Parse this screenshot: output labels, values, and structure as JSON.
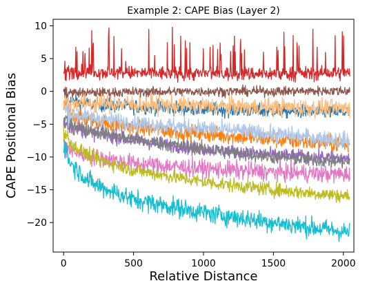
{
  "chart_data": {
    "type": "line",
    "title": "Example 2: CAPE Bias (Layer 2)",
    "xlabel": "Relative Distance",
    "ylabel": "CAPE Positional Bias",
    "xlim": [
      -75,
      2075
    ],
    "ylim": [
      -24.5,
      11
    ],
    "xticks": [
      0,
      500,
      1000,
      1500,
      2000
    ],
    "xtick_labels": [
      "0",
      "500",
      "1000",
      "1500",
      "2000"
    ],
    "yticks": [
      10,
      5,
      0,
      -5,
      -10,
      -15,
      -20
    ],
    "ytick_labels": [
      "10",
      "5",
      "0",
      "−5",
      "−10",
      "−15",
      "−20"
    ],
    "grid": false,
    "legend": "none",
    "x_range": [
      0,
      2047
    ],
    "series": [
      {
        "color": "#1f77b4",
        "noise": 1.0,
        "points": [
          [
            0,
            -0.5
          ],
          [
            50,
            -1.5
          ],
          [
            200,
            -2.0
          ],
          [
            500,
            -2.3
          ],
          [
            1000,
            -2.7
          ],
          [
            1500,
            -3.0
          ],
          [
            2047,
            -3.2
          ]
        ]
      },
      {
        "color": "#ff7f0e",
        "noise": 1.2,
        "points": [
          [
            0,
            -2.0
          ],
          [
            50,
            -3.5
          ],
          [
            200,
            -4.5
          ],
          [
            500,
            -5.5
          ],
          [
            1000,
            -6.5
          ],
          [
            1500,
            -7.3
          ],
          [
            2047,
            -8.2
          ]
        ]
      },
      {
        "color": "#9467bd",
        "noise": 1.0,
        "points": [
          [
            0,
            -4.5
          ],
          [
            50,
            -5.5
          ],
          [
            200,
            -6.3
          ],
          [
            500,
            -7.5
          ],
          [
            1000,
            -8.8
          ],
          [
            1500,
            -9.7
          ],
          [
            2047,
            -10.3
          ]
        ]
      },
      {
        "color": "#7f7f7f",
        "noise": 1.0,
        "points": [
          [
            0,
            -4.0
          ],
          [
            50,
            -5.0
          ],
          [
            200,
            -6.0
          ],
          [
            500,
            -7.3
          ],
          [
            1000,
            -8.8
          ],
          [
            1500,
            -10.0
          ],
          [
            2047,
            -10.8
          ]
        ]
      },
      {
        "color": "#e377c2",
        "noise": 1.3,
        "points": [
          [
            0,
            -8.0
          ],
          [
            50,
            -9.0
          ],
          [
            200,
            -10.0
          ],
          [
            500,
            -11.0
          ],
          [
            1000,
            -11.8
          ],
          [
            1500,
            -12.3
          ],
          [
            2047,
            -12.7
          ]
        ]
      },
      {
        "color": "#bcbd22",
        "noise": 1.0,
        "points": [
          [
            0,
            -6.0
          ],
          [
            50,
            -8.0
          ],
          [
            200,
            -10.0
          ],
          [
            500,
            -12.0
          ],
          [
            1000,
            -13.8
          ],
          [
            1500,
            -15.0
          ],
          [
            2047,
            -16.0
          ]
        ]
      },
      {
        "color": "#aec7e8",
        "noise": 1.2,
        "points": [
          [
            0,
            -2.5
          ],
          [
            50,
            -3.5
          ],
          [
            200,
            -4.0
          ],
          [
            500,
            -4.8
          ],
          [
            1000,
            -5.6
          ],
          [
            1500,
            -6.5
          ],
          [
            2047,
            -7.5
          ]
        ]
      },
      {
        "color": "#8c564b",
        "noise": 0.7,
        "points": [
          [
            0,
            0.0
          ],
          [
            50,
            -0.2
          ],
          [
            200,
            -0.2
          ],
          [
            500,
            -0.1
          ],
          [
            1000,
            0.0
          ],
          [
            1500,
            0.0
          ],
          [
            2047,
            0.1
          ]
        ]
      },
      {
        "color": "#ffbb78",
        "noise": 1.3,
        "points": [
          [
            0,
            -1.5
          ],
          [
            50,
            -1.7
          ],
          [
            200,
            -1.8
          ],
          [
            500,
            -2.0
          ],
          [
            1000,
            -2.2
          ],
          [
            1500,
            -2.4
          ],
          [
            2047,
            -2.6
          ]
        ]
      },
      {
        "color": "#17becf",
        "noise": 1.4,
        "points": [
          [
            0,
            -8.0
          ],
          [
            50,
            -11.0
          ],
          [
            200,
            -14.0
          ],
          [
            500,
            -16.5
          ],
          [
            1000,
            -18.5
          ],
          [
            1500,
            -20.0
          ],
          [
            2047,
            -21.5
          ]
        ]
      },
      {
        "color": "#d62728",
        "noise": 1.0,
        "spikes": true,
        "points": [
          [
            0,
            3.0
          ],
          [
            200,
            3.0
          ],
          [
            500,
            2.8
          ],
          [
            1000,
            2.7
          ],
          [
            1500,
            2.7
          ],
          [
            2047,
            2.8
          ]
        ]
      }
    ]
  }
}
